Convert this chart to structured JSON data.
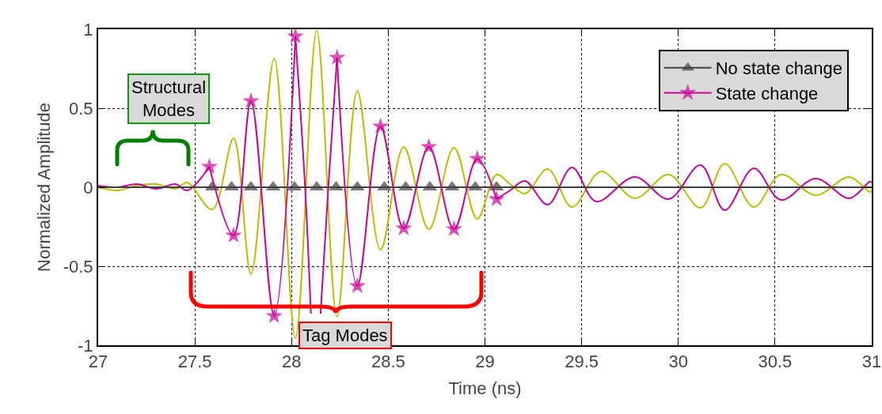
{
  "chart_data": {
    "type": "line",
    "xlabel": "Time (ns)",
    "ylabel": "Normalized Amplitude",
    "xlim": [
      27,
      31
    ],
    "ylim": [
      -1,
      1
    ],
    "xticks": [
      27,
      27.5,
      28,
      28.5,
      29,
      29.5,
      30,
      30.5,
      31
    ],
    "yticks": [
      -1,
      -0.5,
      0,
      0.5,
      1
    ],
    "grid": true,
    "legend": "top right",
    "line_style": "solid",
    "annotations": [
      "Structural Modes",
      "Tag Modes"
    ],
    "series": [
      {
        "color": "#bcbf00",
        "marker": "none",
        "x": [
          27,
          27.1,
          27.2,
          27.3,
          27.4,
          27.46,
          27.59,
          27.7,
          27.79,
          27.91,
          28.02,
          28.13,
          28.235,
          28.34,
          28.46,
          28.58,
          28.71,
          28.84,
          28.96,
          29.06,
          29.13,
          29.207,
          29.325,
          29.45,
          29.6,
          29.775,
          29.95,
          30.115,
          30.24,
          30.39,
          30.53,
          30.71,
          30.885,
          30.99,
          31
        ],
        "values": [
          0,
          -0.02,
          0.01,
          0.02,
          -0.01,
          0.03,
          -0.14,
          0.31,
          -0.55,
          0.815,
          -0.955,
          0.99,
          -0.82,
          0.61,
          -0.395,
          0.255,
          -0.265,
          0.25,
          -0.2,
          0.08,
          0.02,
          -0.04,
          0.115,
          -0.125,
          0.1,
          -0.07,
          0.08,
          -0.13,
          0.15,
          -0.125,
          0.08,
          -0.05,
          0.065,
          -0.03,
          -0.02
        ]
      },
      {
        "color": "#c8039c",
        "marker": "none",
        "x": [
          27,
          27.1,
          27.2,
          27.3,
          27.4,
          27.46,
          27.575,
          27.6,
          28.02,
          28.07,
          28.1,
          28.12,
          28.15,
          28.19,
          28.235,
          29.0,
          29.06,
          29.13,
          29.207,
          29.325,
          29.45,
          29.575,
          29.775,
          29.95,
          30.115,
          30.24,
          30.39,
          30.53,
          30.71,
          30.885,
          30.99,
          31
        ],
        "values": [
          0.01,
          0,
          0.02,
          -0.01,
          0.02,
          -0.02,
          0.13,
          null,
          0.955,
          0,
          -0.8,
          null,
          -0.8,
          0,
          0.82,
          null,
          -0.075,
          -0.02,
          0.04,
          -0.11,
          0.125,
          -0.09,
          0.065,
          -0.075,
          0.14,
          -0.145,
          0.12,
          -0.08,
          0.055,
          -0.07,
          0.035,
          0.03
        ]
      },
      {
        "name": "No state change",
        "color": "#404040",
        "marker": "triangle",
        "x": [
          27,
          27.59,
          27.69,
          27.79,
          27.905,
          28.015,
          28.13,
          28.23,
          28.34,
          28.48,
          28.59,
          28.715,
          28.83,
          28.95,
          29.06,
          31
        ],
        "values": [
          0,
          0,
          0,
          0,
          0,
          0,
          0,
          0,
          0,
          0,
          0,
          0,
          0,
          0,
          0,
          0
        ]
      },
      {
        "name": "State change",
        "color": "#cc0099",
        "marker": "star",
        "x": [
          27.575,
          27.7,
          27.79,
          27.91,
          28.02,
          28.13,
          28.235,
          28.34,
          28.46,
          28.58,
          28.71,
          28.84,
          28.96,
          29.06
        ],
        "values": [
          0.13,
          -0.305,
          0.545,
          -0.815,
          0.955,
          null,
          0.82,
          -0.625,
          0.385,
          -0.26,
          0.255,
          -0.265,
          0.18,
          -0.075
        ]
      }
    ]
  }
}
